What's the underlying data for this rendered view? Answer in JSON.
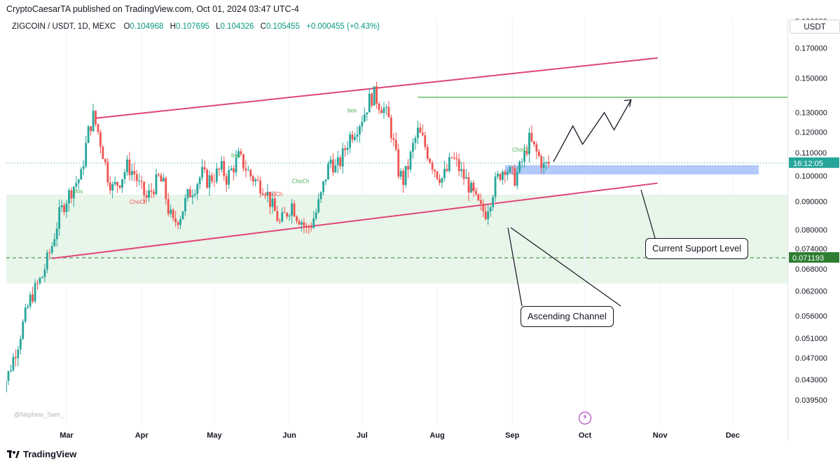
{
  "header": {
    "publisher": "CryptoCaesarTA published on TradingView.com, Oct 01, 2024 03:47 UTC-4"
  },
  "symbol": {
    "name": "ZIGCOIN / USDT, 1D, MEXC",
    "o_label": "O",
    "o": "0.104968",
    "h_label": "H",
    "h": "0.107695",
    "l_label": "L",
    "l": "0.104326",
    "c_label": "C",
    "c": "0.105455",
    "change": "+0.000455 (+0.43%)"
  },
  "price_scale": {
    "currency": "USDT",
    "ticks": [
      "0.190000",
      "0.170000",
      "0.150000",
      "0.130000",
      "0.120000",
      "0.110000",
      "0.100000",
      "0.090000",
      "0.080000",
      "0.074000",
      "0.068000",
      "0.062000",
      "0.056000",
      "0.051000",
      "0.047000",
      "0.043000",
      "0.039500"
    ],
    "countdown": "16:12:05",
    "marked_level": "0.071193"
  },
  "annotations": {
    "support": "Current Support Level",
    "channel": "Ascending Channel",
    "structure_bos": "bos",
    "structure_choch": "ChoCh",
    "structure_choch_alt": "ChoCh"
  },
  "watermark": "@Nephew_Sam_",
  "footer": {
    "brand": "TradingView"
  },
  "colors": {
    "up": "#26a69a",
    "down": "#ef5350",
    "channel": "#e0457b",
    "target": "#4caf50",
    "zone": "#e8f5e9",
    "support_zone": "#a4bff8",
    "level": "#2e7d32",
    "price_line": "#26a69a"
  },
  "chart_data": {
    "type": "candlestick",
    "title": "ZIGCOIN / USDT, 1D, MEXC",
    "scale": "log",
    "ylim": [
      0.0385,
      0.205
    ],
    "x_ticks": [
      "Mar",
      "Apr",
      "May",
      "Jun",
      "Jul",
      "Aug",
      "Sep",
      "Oct",
      "Nov",
      "Dec"
    ],
    "price_path": [
      [
        -28,
        0.04
      ],
      [
        -24,
        0.044
      ],
      [
        -20,
        0.05
      ],
      [
        -15,
        0.06
      ],
      [
        -10,
        0.066
      ],
      [
        -6,
        0.075
      ],
      [
        -3,
        0.085
      ],
      [
        0,
        0.091
      ],
      [
        3,
        0.096
      ],
      [
        6,
        0.1
      ],
      [
        9,
        0.12
      ],
      [
        11,
        0.128
      ],
      [
        13,
        0.12
      ],
      [
        15,
        0.11
      ],
      [
        17,
        0.1
      ],
      [
        19,
        0.095
      ],
      [
        22,
        0.098
      ],
      [
        25,
        0.104
      ],
      [
        28,
        0.101
      ],
      [
        30,
        0.096
      ],
      [
        33,
        0.091
      ],
      [
        35,
        0.094
      ],
      [
        38,
        0.099
      ],
      [
        40,
        0.096
      ],
      [
        42,
        0.087
      ],
      [
        44,
        0.082
      ],
      [
        47,
        0.085
      ],
      [
        50,
        0.092
      ],
      [
        53,
        0.096
      ],
      [
        56,
        0.101
      ],
      [
        58,
        0.098
      ],
      [
        61,
        0.1
      ],
      [
        64,
        0.103
      ],
      [
        66,
        0.099
      ],
      [
        69,
        0.104
      ],
      [
        71,
        0.108
      ],
      [
        73,
        0.105
      ],
      [
        76,
        0.1
      ],
      [
        79,
        0.097
      ],
      [
        82,
        0.095
      ],
      [
        84,
        0.09
      ],
      [
        86,
        0.086
      ],
      [
        88,
        0.082
      ],
      [
        91,
        0.086
      ],
      [
        93,
        0.089
      ],
      [
        95,
        0.085
      ],
      [
        97,
        0.083
      ],
      [
        99,
        0.08
      ],
      [
        101,
        0.082
      ],
      [
        103,
        0.086
      ],
      [
        105,
        0.092
      ],
      [
        107,
        0.1
      ],
      [
        109,
        0.107
      ],
      [
        111,
        0.103
      ],
      [
        113,
        0.106
      ],
      [
        115,
        0.112
      ],
      [
        117,
        0.118
      ],
      [
        119,
        0.121
      ],
      [
        121,
        0.125
      ],
      [
        123,
        0.13
      ],
      [
        125,
        0.137
      ],
      [
        127,
        0.14
      ],
      [
        129,
        0.135
      ],
      [
        131,
        0.132
      ],
      [
        133,
        0.126
      ],
      [
        135,
        0.114
      ],
      [
        137,
        0.102
      ],
      [
        139,
        0.098
      ],
      [
        141,
        0.104
      ],
      [
        143,
        0.113
      ],
      [
        145,
        0.12
      ],
      [
        147,
        0.116
      ],
      [
        149,
        0.11
      ],
      [
        151,
        0.105
      ],
      [
        153,
        0.101
      ],
      [
        155,
        0.099
      ],
      [
        157,
        0.102
      ],
      [
        159,
        0.108
      ],
      [
        161,
        0.105
      ],
      [
        163,
        0.101
      ],
      [
        165,
        0.098
      ],
      [
        167,
        0.094
      ],
      [
        169,
        0.09
      ],
      [
        171,
        0.087
      ],
      [
        173,
        0.086
      ],
      [
        175,
        0.091
      ],
      [
        177,
        0.097
      ],
      [
        179,
        0.101
      ],
      [
        181,
        0.104
      ],
      [
        183,
        0.101
      ],
      [
        185,
        0.099
      ],
      [
        187,
        0.103
      ],
      [
        189,
        0.109
      ],
      [
        191,
        0.116
      ],
      [
        193,
        0.112
      ],
      [
        195,
        0.108
      ],
      [
        197,
        0.104
      ],
      [
        199,
        0.105
      ]
    ],
    "channel_upper": [
      [
        12,
        0.127
      ],
      [
        244,
        0.163
      ]
    ],
    "channel_lower": [
      [
        -6,
        0.071
      ],
      [
        244,
        0.097
      ]
    ],
    "target_level": 0.1385,
    "zone": [
      0.064,
      0.0925
    ],
    "support_zone": [
      0.1006,
      0.1045
    ],
    "level_line": 0.071193,
    "last_price": 0.105455,
    "projection": [
      [
        201,
        0.106
      ],
      [
        209,
        0.123
      ],
      [
        213,
        0.114
      ],
      [
        222,
        0.13
      ],
      [
        226,
        0.121
      ],
      [
        233,
        0.137
      ]
    ]
  }
}
